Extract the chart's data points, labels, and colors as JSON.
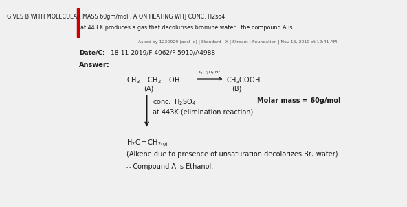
{
  "bg_color": "#f0f0f0",
  "top_text_line1": "GIVES B WITH MOLECULAR MASS 60gm/mol . A ON HEATING WITJ CONC. H2so4",
  "top_text_line2": "at 443 K produces a gas that decolurises bromine water . the compound A is",
  "meta_text": "Asked by 1230929 (aesl-id) | Standard : X | Stream : Foundation | Nov 16, 2019 at 12:41 AM",
  "date_label": "Date/C:",
  "date_value": "18-11-2019/F 4062/F 5910/A4988",
  "answer_label": "Answer:",
  "label_A": "(A)",
  "label_B": "(B)",
  "molar_mass": "Molar mass = 60g/mol",
  "arrow_label1": "conc. H₂SO₄",
  "arrow_label2": "at 443K (elimination reaction)",
  "alkene_note": "(Alkene due to presence of unsaturation decolorizes Br₂ water)",
  "conclusion": "∴ Compound A is Ethanol.",
  "text_color": "#1a1a1a",
  "gray_text": "#555555",
  "red_bar_color": "#cc0000"
}
